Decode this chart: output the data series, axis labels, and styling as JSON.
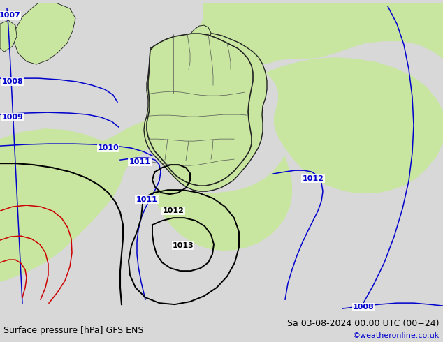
{
  "title_left": "Surface pressure [hPa] GFS ENS",
  "title_right": "Sa 03-08-2024 00:00 UTC (00+24)",
  "credit": "©weatheronline.co.uk",
  "land_color": "#c8e6a0",
  "sea_color": "#d8d8d8",
  "germany_fill": "#c8e6a0",
  "border_color": "#222222",
  "state_border_color": "#555555",
  "blue_color": "#0000cc",
  "black_color": "#000000",
  "red_color": "#cc0000",
  "footer_fontsize": 9,
  "credit_color": "#0000cc"
}
